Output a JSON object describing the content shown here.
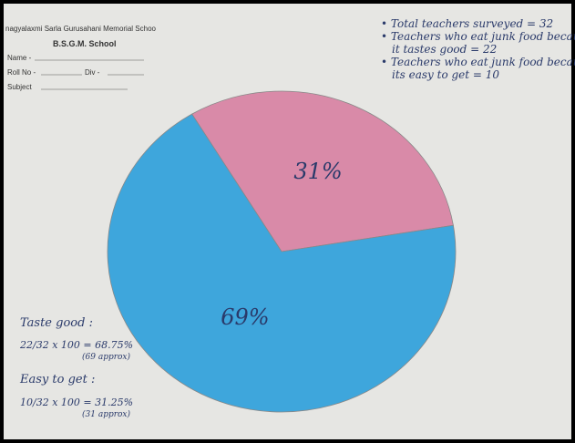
{
  "header": {
    "school_full": "nagyalaxmi Sarla Gurusahani Memorial Schoo",
    "school_short": "B.S.G.M. School",
    "name": "Name -",
    "roll": "Roll No -",
    "div": "Div -",
    "subject": "Subject"
  },
  "notes": [
    "• Total teachers surveyed = 32",
    "• Teachers who eat junk food because",
    "it tastes good = 22",
    "• Teachers who eat junk food because",
    "its easy to get = 10"
  ],
  "calculations": [
    "Taste good :",
    "22/32 x 100 = 68.75%",
    "(69 approx)",
    "Easy to get :",
    "10/32 x 100 = 31.25%",
    "(31 approx)"
  ],
  "chart_data": {
    "type": "pie",
    "values": [
      31,
      69
    ],
    "value_labels": [
      "31%",
      "69%"
    ],
    "colors": [
      "#d98aa8",
      "#3ea6dc"
    ],
    "start_angle": -31
  }
}
